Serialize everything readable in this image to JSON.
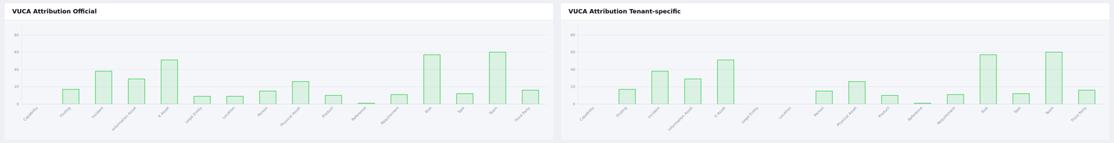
{
  "chart_data": [
    {
      "type": "bar",
      "title": "VUCA Attribution Official",
      "categories": [
        "Capability",
        "Finding",
        "Incident",
        "Information Asset",
        "It Asset",
        "Legal Entity",
        "Location",
        "Person",
        "Physical Asset",
        "Product",
        "Reference",
        "Requirement",
        "Risk",
        "Task",
        "Team",
        "Third Party"
      ],
      "values": [
        0,
        17,
        38,
        29,
        51,
        9,
        9,
        15,
        26,
        10,
        1,
        11,
        57,
        12,
        60,
        16
      ],
      "color": "#22cc44",
      "ylim": [
        0,
        90
      ],
      "yticks": [
        0,
        20,
        40,
        60,
        80
      ],
      "grid": true
    },
    {
      "type": "bar",
      "title": "VUCA Attribution Tenant-specific",
      "categories": [
        "Capability",
        "Finding",
        "Incident",
        "Information Asset",
        "It Asset",
        "Legal Entity",
        "Location",
        "Person",
        "Physical Asset",
        "Product",
        "Reference",
        "Requirement",
        "Risk",
        "Task",
        "Team",
        "Third Party"
      ],
      "values": [
        0,
        17,
        38,
        29,
        51,
        0,
        0,
        15,
        26,
        10,
        1,
        11,
        57,
        12,
        60,
        16
      ],
      "color": "#22cc44",
      "ylim": [
        0,
        90
      ],
      "yticks": [
        0,
        20,
        40,
        60,
        80
      ],
      "grid": true
    }
  ]
}
